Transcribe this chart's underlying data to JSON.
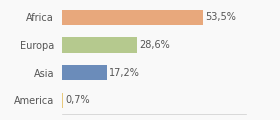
{
  "categories": [
    "Africa",
    "Europa",
    "Asia",
    "America"
  ],
  "values": [
    53.5,
    28.6,
    17.2,
    0.7
  ],
  "labels": [
    "53,5%",
    "28,6%",
    "17,2%",
    "0,7%"
  ],
  "bar_colors": [
    "#e8a87c",
    "#b5c98e",
    "#6b8cba",
    "#e8c97c"
  ],
  "background_color": "#f9f9f9",
  "xlim": [
    0,
    70
  ],
  "bar_height": 0.55,
  "label_fontsize": 7,
  "tick_fontsize": 7
}
